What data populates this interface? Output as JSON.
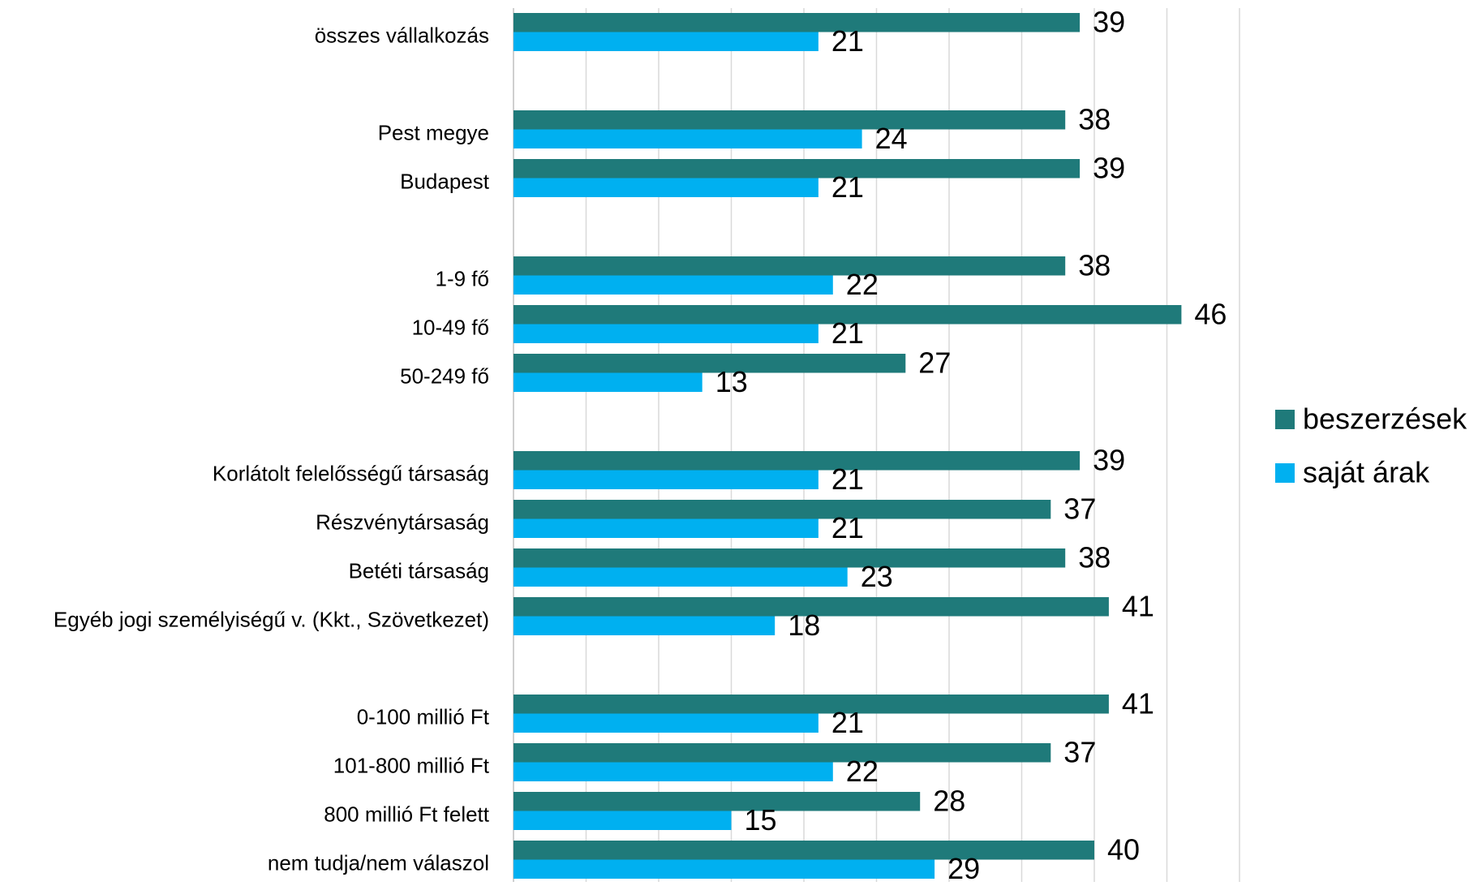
{
  "chart_data": {
    "type": "bar",
    "orientation": "horizontal",
    "title": "",
    "xlabel": "",
    "ylabel": "",
    "xlim": [
      0,
      50
    ],
    "grid": true,
    "legend_position": "right",
    "categories": [
      "összes vállalkozás",
      "",
      "Pest megye",
      "Budapest",
      "",
      "1-9 fő",
      "10-49 fő",
      "50-249 fő",
      "",
      "Korlátolt felelősségű társaság",
      "Részvénytársaság",
      "Betéti társaság",
      "Egyéb jogi személyiségű v. (Kkt., Szövetkezet)",
      "",
      "0-100 millió Ft",
      "101-800 millió Ft",
      "800 millió Ft felett",
      "nem tudja/nem válaszol"
    ],
    "series": [
      {
        "name": "beszerzések",
        "color": "#1f7a7a",
        "values": [
          39,
          null,
          38,
          39,
          null,
          38,
          46,
          27,
          null,
          39,
          37,
          38,
          41,
          null,
          41,
          37,
          28,
          40
        ]
      },
      {
        "name": "saját árak",
        "color": "#00b0f0",
        "values": [
          21,
          null,
          24,
          21,
          null,
          22,
          21,
          13,
          null,
          21,
          21,
          23,
          18,
          null,
          21,
          22,
          15,
          29
        ]
      }
    ]
  }
}
